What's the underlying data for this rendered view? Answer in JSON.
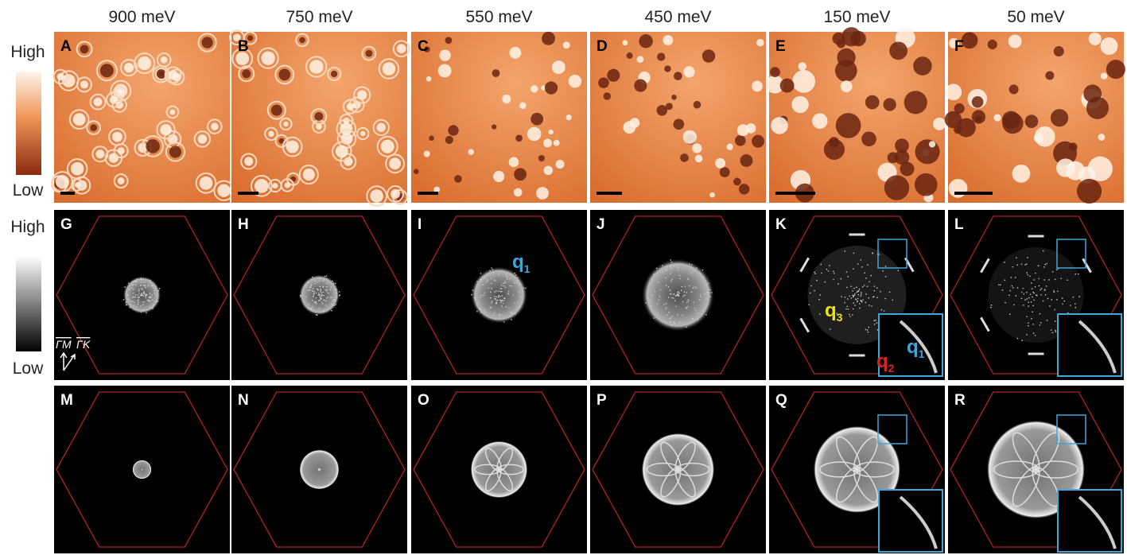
{
  "columns": [
    "900 meV",
    "750 meV",
    "550 meV",
    "450 meV",
    "150 meV",
    "50 meV"
  ],
  "colorbars": [
    {
      "high": "High",
      "low": "Low"
    },
    {
      "high": "High",
      "low": "Low"
    }
  ],
  "panels": [
    [
      "A",
      "B",
      "C",
      "D",
      "E",
      "F"
    ],
    [
      "G",
      "H",
      "I",
      "J",
      "K",
      "L"
    ],
    [
      "M",
      "N",
      "O",
      "P",
      "Q",
      "R"
    ]
  ],
  "annotations": {
    "gamma_m": "ΓM",
    "gamma_k": "ΓK",
    "i_q1": {
      "base": "q",
      "sub": "1"
    },
    "k_q3": {
      "base": "q",
      "sub": "3"
    },
    "k_q2": {
      "base": "q",
      "sub": "2"
    },
    "k_q1": {
      "base": "q",
      "sub": "1"
    }
  }
}
